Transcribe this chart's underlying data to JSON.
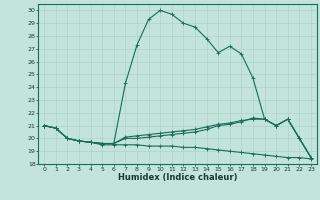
{
  "xlabel": "Humidex (Indice chaleur)",
  "xlim": [
    -0.5,
    23.5
  ],
  "ylim": [
    18,
    30.5
  ],
  "yticks": [
    18,
    19,
    20,
    21,
    22,
    23,
    24,
    25,
    26,
    27,
    28,
    29,
    30
  ],
  "xticks": [
    0,
    1,
    2,
    3,
    4,
    5,
    6,
    7,
    8,
    9,
    10,
    11,
    12,
    13,
    14,
    15,
    16,
    17,
    18,
    19,
    20,
    21,
    22,
    23
  ],
  "bg_color": "#c2e4dc",
  "grid_color": "#a8d0c8",
  "line_color": "#1a6b5a",
  "line1_y": [
    21.0,
    20.8,
    20.0,
    19.8,
    19.7,
    19.6,
    19.6,
    24.3,
    27.3,
    29.3,
    30.0,
    29.7,
    29.0,
    28.7,
    27.8,
    26.7,
    27.2,
    26.6,
    24.7,
    21.5,
    21.0,
    21.5,
    20.0,
    18.5
  ],
  "line2_y": [
    21.0,
    20.8,
    20.0,
    19.8,
    19.7,
    19.6,
    19.6,
    20.1,
    20.2,
    20.3,
    20.4,
    20.5,
    20.6,
    20.7,
    20.9,
    21.1,
    21.2,
    21.4,
    21.5,
    21.5,
    21.0,
    21.5,
    20.0,
    18.5
  ],
  "line3_y": [
    21.0,
    20.8,
    20.0,
    19.8,
    19.7,
    19.5,
    19.5,
    19.5,
    19.5,
    19.4,
    19.4,
    19.4,
    19.3,
    19.3,
    19.2,
    19.1,
    19.0,
    18.9,
    18.8,
    18.7,
    18.6,
    18.5,
    18.5,
    18.4
  ],
  "line4_y": [
    21.0,
    20.8,
    20.0,
    19.8,
    19.7,
    19.6,
    19.6,
    20.0,
    20.0,
    20.1,
    20.2,
    20.3,
    20.4,
    20.5,
    20.7,
    21.0,
    21.1,
    21.3,
    21.6,
    21.5,
    21.0,
    21.5,
    20.0,
    18.5
  ]
}
